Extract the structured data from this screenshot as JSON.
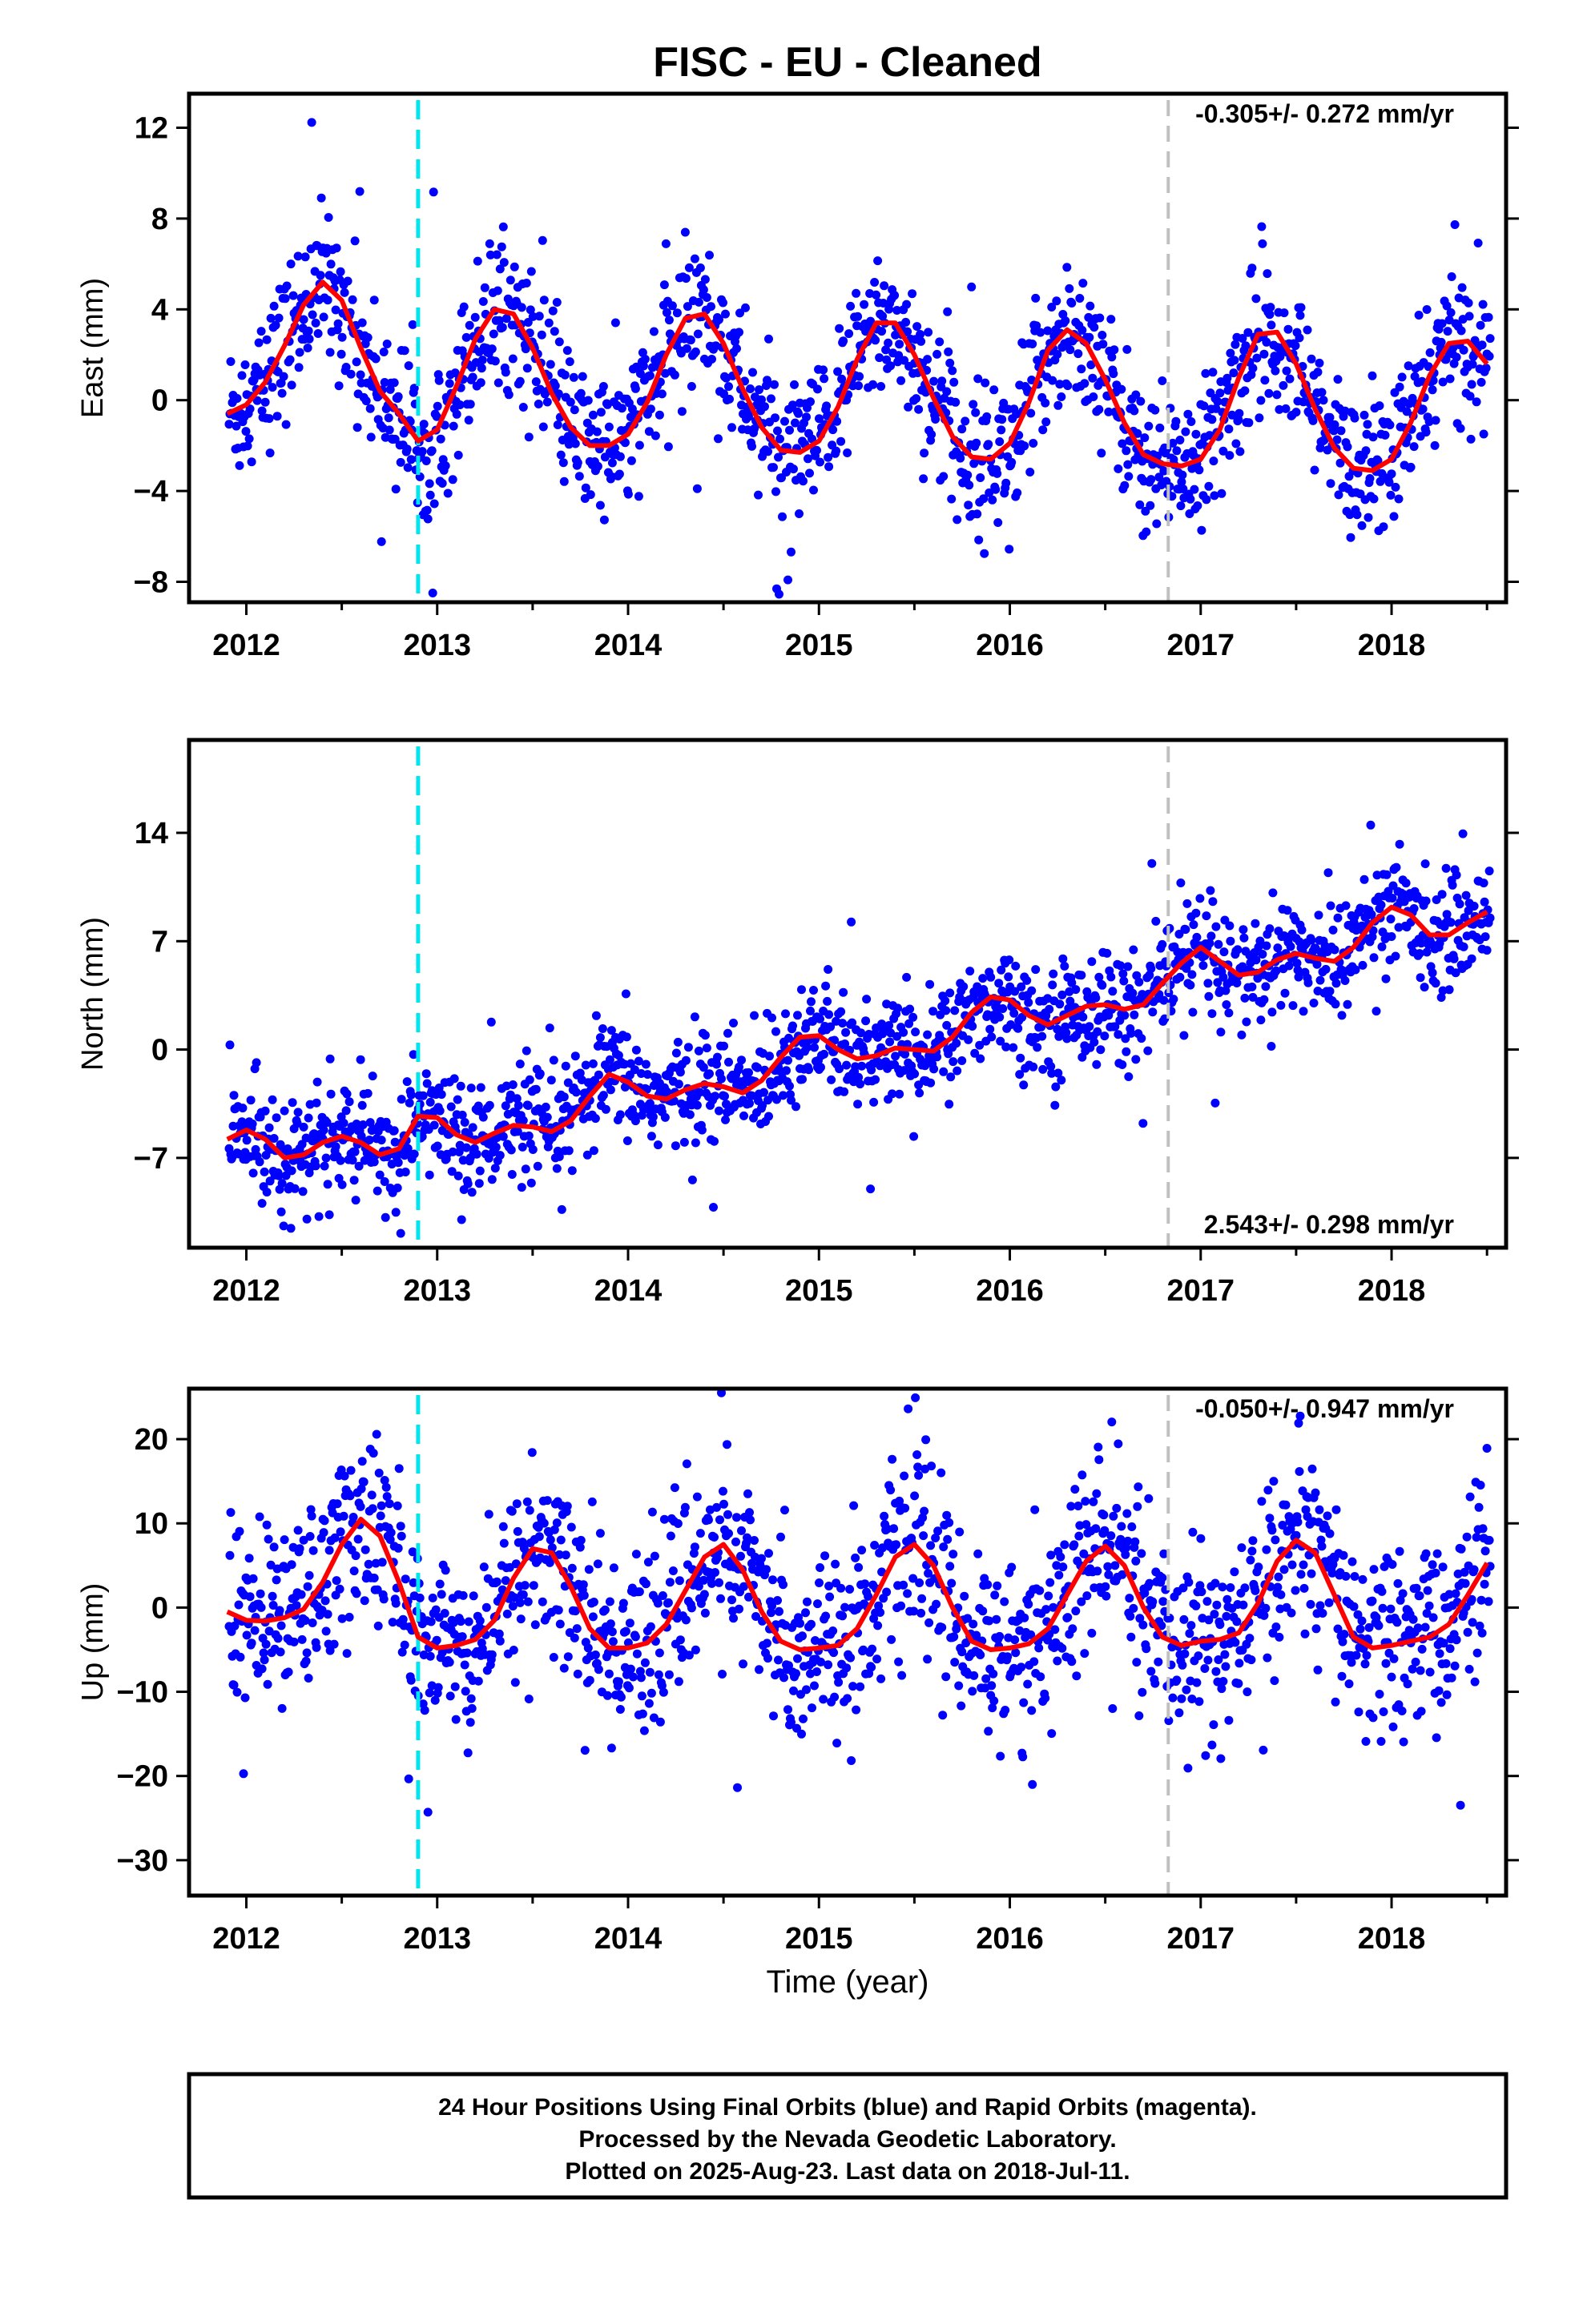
{
  "title": "FISC  - EU - Cleaned",
  "xlabel": "Time (year)",
  "footer": {
    "line1": "24 Hour Positions Using Final Orbits (blue) and Rapid Orbits (magenta).",
    "line2": "Processed by the Nevada Geodetic Laboratory.",
    "line3": "Plotted on 2025-Aug-23. Last data on 2018-Jul-11."
  },
  "colors": {
    "points": "#0000ff",
    "model": "#ff0000",
    "equipment_change": "#00e5ee",
    "other_event": "#c0c0c0"
  },
  "chart_data": [
    {
      "type": "scatter",
      "component": "East",
      "ylabel": "East (mm)",
      "rate_text": "-0.305+/- 0.272 mm/yr",
      "rate_position": "top-right",
      "xlim": [
        2011.7,
        2018.6
      ],
      "ylim": [
        -8.9,
        13.5
      ],
      "yticks": [
        12,
        8,
        4,
        0,
        -4,
        -8
      ],
      "ytick_labels": [
        "12",
        "8",
        "4",
        "0",
        "−4",
        "−8"
      ],
      "xticks": [
        2012,
        2013,
        2014,
        2015,
        2016,
        2017,
        2018
      ],
      "xtick_labels": [
        "2012",
        "2013",
        "2014",
        "2015",
        "2016",
        "2017",
        "2018"
      ],
      "vlines": [
        {
          "x": 2012.9,
          "style": "cyan-dashed"
        },
        {
          "x": 2016.83,
          "style": "gray-dashed"
        }
      ],
      "model_curve": {
        "x": [
          2011.9,
          2012.0,
          2012.1,
          2012.2,
          2012.3,
          2012.4,
          2012.5,
          2012.6,
          2012.7,
          2012.8,
          2012.9,
          2013.0,
          2013.1,
          2013.2,
          2013.3,
          2013.4,
          2013.5,
          2013.6,
          2013.7,
          2013.8,
          2013.9,
          2014.0,
          2014.1,
          2014.2,
          2014.3,
          2014.4,
          2014.5,
          2014.6,
          2014.7,
          2014.8,
          2014.9,
          2015.0,
          2015.1,
          2015.2,
          2015.3,
          2015.4,
          2015.5,
          2015.6,
          2015.7,
          2015.8,
          2015.9,
          2016.0,
          2016.1,
          2016.2,
          2016.3,
          2016.4,
          2016.5,
          2016.6,
          2016.7,
          2016.8,
          2016.9,
          2017.0,
          2017.1,
          2017.2,
          2017.3,
          2017.4,
          2017.5,
          2017.6,
          2017.7,
          2017.8,
          2017.9,
          2018.0,
          2018.1,
          2018.2,
          2018.3,
          2018.4,
          2018.5
        ],
        "y": [
          -0.6,
          -0.2,
          0.8,
          2.4,
          4.2,
          5.2,
          4.4,
          2.3,
          0.4,
          -0.6,
          -1.8,
          -1.3,
          0.6,
          2.7,
          4.0,
          3.8,
          2.3,
          0.3,
          -1.2,
          -2.0,
          -2.0,
          -1.5,
          -0.1,
          2.0,
          3.6,
          3.8,
          2.5,
          0.5,
          -1.2,
          -2.2,
          -2.3,
          -1.8,
          -0.3,
          1.8,
          3.4,
          3.4,
          2.0,
          0.1,
          -1.6,
          -2.5,
          -2.6,
          -1.9,
          -0.1,
          2.2,
          3.1,
          2.5,
          0.9,
          -1.0,
          -2.4,
          -2.8,
          -2.9,
          -2.6,
          -1.3,
          1.0,
          2.9,
          3.0,
          1.6,
          -0.4,
          -2.1,
          -3.0,
          -3.1,
          -2.6,
          -1.0,
          1.1,
          2.5,
          2.6,
          1.6
        ]
      }
    },
    {
      "type": "scatter",
      "component": "North",
      "ylabel": "North (mm)",
      "rate_text": "2.543+/- 0.298 mm/yr",
      "rate_position": "bottom-right",
      "xlim": [
        2011.7,
        2018.6
      ],
      "ylim": [
        -12.8,
        20.0
      ],
      "yticks": [
        14,
        7,
        0,
        -7
      ],
      "ytick_labels": [
        "14",
        "7",
        "0",
        "−7"
      ],
      "xticks": [
        2012,
        2013,
        2014,
        2015,
        2016,
        2017,
        2018
      ],
      "xtick_labels": [
        "2012",
        "2013",
        "2014",
        "2015",
        "2016",
        "2017",
        "2018"
      ],
      "vlines": [
        {
          "x": 2012.9,
          "style": "cyan-dashed"
        },
        {
          "x": 2016.83,
          "style": "gray-dashed"
        }
      ],
      "model_curve": {
        "x": [
          2011.9,
          2012.0,
          2012.1,
          2012.2,
          2012.3,
          2012.4,
          2012.5,
          2012.6,
          2012.7,
          2012.8,
          2012.9,
          2013.0,
          2013.1,
          2013.2,
          2013.3,
          2013.4,
          2013.5,
          2013.6,
          2013.7,
          2013.8,
          2013.9,
          2014.0,
          2014.1,
          2014.2,
          2014.3,
          2014.4,
          2014.5,
          2014.6,
          2014.7,
          2014.8,
          2014.9,
          2015.0,
          2015.1,
          2015.2,
          2015.3,
          2015.4,
          2015.5,
          2015.6,
          2015.7,
          2015.8,
          2015.9,
          2016.0,
          2016.1,
          2016.2,
          2016.3,
          2016.4,
          2016.5,
          2016.6,
          2016.7,
          2016.8,
          2016.9,
          2017.0,
          2017.1,
          2017.2,
          2017.3,
          2017.4,
          2017.5,
          2017.6,
          2017.7,
          2017.8,
          2017.9,
          2018.0,
          2018.1,
          2018.2,
          2018.3,
          2018.4,
          2018.5
        ],
        "y": [
          -5.8,
          -5.2,
          -5.8,
          -7.0,
          -6.8,
          -6.0,
          -5.6,
          -6.0,
          -6.8,
          -6.4,
          -4.3,
          -4.4,
          -5.5,
          -6.0,
          -5.4,
          -4.9,
          -5.0,
          -5.3,
          -4.6,
          -3.0,
          -1.6,
          -2.1,
          -3.0,
          -3.2,
          -2.6,
          -2.2,
          -2.4,
          -2.8,
          -2.0,
          -0.5,
          0.8,
          0.9,
          0.0,
          -0.6,
          -0.4,
          0.1,
          0.0,
          -0.1,
          0.8,
          2.4,
          3.4,
          3.2,
          2.2,
          1.6,
          2.2,
          2.8,
          2.9,
          2.6,
          2.9,
          4.3,
          5.6,
          6.6,
          5.7,
          4.8,
          5.0,
          5.8,
          6.2,
          5.9,
          5.7,
          6.6,
          8.2,
          9.2,
          8.7,
          7.4,
          7.4,
          8.2,
          8.9
        ]
      }
    },
    {
      "type": "scatter",
      "component": "Up",
      "ylabel": "Up (mm)",
      "rate_text": "-0.050+/- 0.947 mm/yr",
      "rate_position": "top-right",
      "xlim": [
        2011.7,
        2018.6
      ],
      "ylim": [
        -34.2,
        26.0
      ],
      "yticks": [
        20,
        10,
        0,
        -10,
        -20,
        -30
      ],
      "ytick_labels": [
        "20",
        "10",
        "0",
        "−10",
        "−20",
        "−30"
      ],
      "xticks": [
        2012,
        2013,
        2014,
        2015,
        2016,
        2017,
        2018
      ],
      "xtick_labels": [
        "2012",
        "2013",
        "2014",
        "2015",
        "2016",
        "2017",
        "2018"
      ],
      "vlines": [
        {
          "x": 2012.9,
          "style": "cyan-dashed"
        },
        {
          "x": 2016.83,
          "style": "gray-dashed"
        }
      ],
      "model_curve": {
        "x": [
          2011.9,
          2012.0,
          2012.1,
          2012.2,
          2012.3,
          2012.4,
          2012.5,
          2012.6,
          2012.7,
          2012.8,
          2012.9,
          2013.0,
          2013.1,
          2013.2,
          2013.3,
          2013.4,
          2013.5,
          2013.6,
          2013.7,
          2013.8,
          2013.9,
          2014.0,
          2014.1,
          2014.2,
          2014.3,
          2014.4,
          2014.5,
          2014.6,
          2014.7,
          2014.8,
          2014.9,
          2015.0,
          2015.1,
          2015.2,
          2015.3,
          2015.4,
          2015.5,
          2015.6,
          2015.7,
          2015.8,
          2015.9,
          2016.0,
          2016.1,
          2016.2,
          2016.3,
          2016.4,
          2016.5,
          2016.6,
          2016.7,
          2016.8,
          2016.9,
          2017.0,
          2017.1,
          2017.2,
          2017.3,
          2017.4,
          2017.5,
          2017.6,
          2017.7,
          2017.8,
          2017.9,
          2018.0,
          2018.1,
          2018.2,
          2018.3,
          2018.4,
          2018.5
        ],
        "y": [
          -0.5,
          -1.5,
          -1.6,
          -1.2,
          -0.2,
          3.0,
          7.5,
          10.5,
          8.5,
          3.0,
          -3.5,
          -4.8,
          -4.5,
          -3.8,
          -1.5,
          3.5,
          7.0,
          6.5,
          2.5,
          -2.5,
          -4.8,
          -4.8,
          -4.2,
          -2.0,
          2.0,
          6.0,
          7.5,
          4.5,
          -0.5,
          -4.0,
          -5.0,
          -4.8,
          -4.5,
          -2.5,
          1.5,
          6.0,
          7.5,
          5.0,
          0.0,
          -4.0,
          -5.0,
          -4.8,
          -4.3,
          -2.5,
          1.5,
          5.5,
          7.3,
          5.0,
          0.0,
          -3.5,
          -4.5,
          -4.0,
          -3.8,
          -3.0,
          0.5,
          5.5,
          8.0,
          6.5,
          1.5,
          -3.5,
          -4.8,
          -4.5,
          -4.0,
          -3.5,
          -2.0,
          1.5,
          5.3
        ]
      }
    }
  ]
}
